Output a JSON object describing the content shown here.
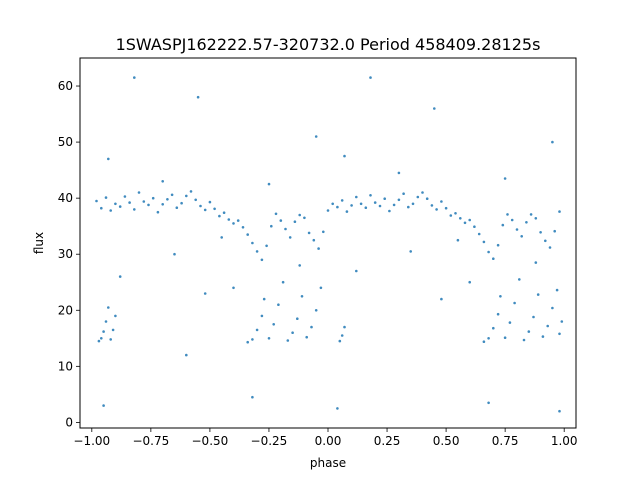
{
  "chart_data": {
    "type": "scatter",
    "title": "1SWASPJ162222.57-320732.0 Period 458409.28125s",
    "xlabel": "phase",
    "ylabel": "flux",
    "xlim": [
      -1.05,
      1.05
    ],
    "ylim": [
      -1,
      65
    ],
    "x_ticks": [
      -1.0,
      -0.75,
      -0.5,
      -0.25,
      0.0,
      0.25,
      0.5,
      0.75,
      1.0
    ],
    "x_tick_labels": [
      "−1.00",
      "−0.75",
      "−0.50",
      "−0.25",
      "0.00",
      "0.25",
      "0.50",
      "0.75",
      "1.00"
    ],
    "y_ticks": [
      0,
      10,
      20,
      30,
      40,
      50,
      60
    ],
    "y_tick_labels": [
      "0",
      "10",
      "20",
      "30",
      "40",
      "50",
      "60"
    ],
    "grid": false,
    "legend": "none",
    "point_color": "#1f77b4",
    "series": [
      {
        "points": [
          [
            -0.98,
            39.5
          ],
          [
            -0.96,
            38.2
          ],
          [
            -0.94,
            40.1
          ],
          [
            -0.92,
            37.8
          ],
          [
            -0.9,
            39.0
          ],
          [
            -0.88,
            38.5
          ],
          [
            -0.86,
            40.3
          ],
          [
            -0.84,
            39.2
          ],
          [
            -0.82,
            38.0
          ],
          [
            -0.8,
            41.0
          ],
          [
            -0.78,
            39.4
          ],
          [
            -0.76,
            38.8
          ],
          [
            -0.74,
            40.0
          ],
          [
            -0.72,
            37.5
          ],
          [
            -0.7,
            38.9
          ],
          [
            -0.68,
            39.8
          ],
          [
            -0.66,
            40.6
          ],
          [
            -0.64,
            38.3
          ],
          [
            -0.62,
            39.1
          ],
          [
            -0.6,
            40.4
          ],
          [
            -0.58,
            41.2
          ],
          [
            -0.56,
            39.7
          ],
          [
            -0.54,
            38.6
          ],
          [
            -0.52,
            37.9
          ],
          [
            -0.5,
            39.3
          ],
          [
            -0.48,
            38.1
          ],
          [
            -0.46,
            36.8
          ],
          [
            -0.44,
            37.4
          ],
          [
            -0.42,
            36.2
          ],
          [
            -0.4,
            35.5
          ],
          [
            -0.38,
            36.0
          ],
          [
            -0.36,
            34.8
          ],
          [
            -0.34,
            33.5
          ],
          [
            -0.32,
            32.0
          ],
          [
            -0.3,
            30.5
          ],
          [
            -0.28,
            29.0
          ],
          [
            -0.26,
            31.5
          ],
          [
            -0.24,
            35.0
          ],
          [
            -0.22,
            37.2
          ],
          [
            -0.2,
            36.0
          ],
          [
            -0.18,
            34.5
          ],
          [
            -0.16,
            33.0
          ],
          [
            -0.14,
            35.8
          ],
          [
            -0.12,
            37.0
          ],
          [
            -0.1,
            36.5
          ],
          [
            -0.08,
            33.8
          ],
          [
            -0.06,
            32.5
          ],
          [
            -0.04,
            31.0
          ],
          [
            -0.02,
            34.0
          ],
          [
            0.0,
            37.8
          ],
          [
            0.02,
            39.0
          ],
          [
            0.04,
            38.4
          ],
          [
            0.06,
            39.6
          ],
          [
            0.08,
            37.6
          ],
          [
            0.1,
            38.7
          ],
          [
            0.12,
            40.2
          ],
          [
            0.14,
            39.0
          ],
          [
            0.16,
            38.3
          ],
          [
            0.18,
            40.5
          ],
          [
            0.2,
            39.2
          ],
          [
            0.22,
            38.6
          ],
          [
            0.24,
            39.9
          ],
          [
            0.26,
            37.7
          ],
          [
            0.28,
            38.8
          ],
          [
            0.3,
            39.7
          ],
          [
            0.32,
            40.8
          ],
          [
            0.34,
            38.4
          ],
          [
            0.36,
            39.0
          ],
          [
            0.38,
            40.2
          ],
          [
            0.4,
            41.0
          ],
          [
            0.42,
            39.9
          ],
          [
            0.44,
            38.7
          ],
          [
            0.46,
            38.0
          ],
          [
            0.48,
            39.4
          ],
          [
            0.5,
            38.2
          ],
          [
            0.52,
            36.9
          ],
          [
            0.54,
            37.3
          ],
          [
            0.56,
            36.4
          ],
          [
            0.58,
            35.6
          ],
          [
            0.6,
            36.1
          ],
          [
            0.62,
            34.9
          ],
          [
            0.64,
            33.6
          ],
          [
            0.66,
            32.2
          ],
          [
            0.68,
            30.4
          ],
          [
            0.7,
            29.2
          ],
          [
            0.72,
            31.6
          ],
          [
            0.74,
            35.2
          ],
          [
            0.76,
            37.1
          ],
          [
            0.78,
            36.1
          ],
          [
            0.8,
            34.4
          ],
          [
            0.82,
            33.2
          ],
          [
            0.84,
            35.7
          ],
          [
            0.86,
            37.1
          ],
          [
            0.88,
            36.4
          ],
          [
            0.9,
            33.9
          ],
          [
            0.92,
            32.4
          ],
          [
            0.94,
            31.2
          ],
          [
            0.96,
            34.1
          ],
          [
            0.98,
            37.6
          ],
          [
            -0.97,
            14.5
          ],
          [
            -0.96,
            15.0
          ],
          [
            -0.95,
            16.2
          ],
          [
            -0.94,
            18.0
          ],
          [
            -0.93,
            20.5
          ],
          [
            -0.92,
            14.8
          ],
          [
            -0.91,
            16.5
          ],
          [
            -0.9,
            19.0
          ],
          [
            -0.34,
            14.3
          ],
          [
            -0.32,
            14.8
          ],
          [
            -0.3,
            16.5
          ],
          [
            -0.28,
            19.0
          ],
          [
            -0.27,
            22.0
          ],
          [
            -0.25,
            15.0
          ],
          [
            -0.23,
            17.5
          ],
          [
            -0.21,
            21.0
          ],
          [
            -0.19,
            25.0
          ],
          [
            -0.17,
            14.6
          ],
          [
            -0.15,
            16.0
          ],
          [
            -0.13,
            18.5
          ],
          [
            -0.11,
            22.5
          ],
          [
            -0.09,
            15.2
          ],
          [
            -0.07,
            17.0
          ],
          [
            -0.05,
            20.0
          ],
          [
            -0.03,
            24.0
          ],
          [
            0.05,
            14.5
          ],
          [
            0.06,
            15.5
          ],
          [
            0.07,
            17.0
          ],
          [
            0.66,
            14.4
          ],
          [
            0.68,
            15.0
          ],
          [
            0.7,
            16.8
          ],
          [
            0.72,
            19.3
          ],
          [
            0.73,
            22.5
          ],
          [
            0.75,
            15.1
          ],
          [
            0.77,
            17.8
          ],
          [
            0.79,
            21.3
          ],
          [
            0.81,
            25.5
          ],
          [
            0.83,
            14.7
          ],
          [
            0.85,
            16.2
          ],
          [
            0.87,
            18.8
          ],
          [
            0.89,
            22.8
          ],
          [
            0.91,
            15.3
          ],
          [
            0.93,
            17.2
          ],
          [
            0.95,
            20.4
          ],
          [
            0.97,
            23.6
          ],
          [
            0.98,
            15.8
          ],
          [
            0.99,
            18.0
          ],
          [
            -0.82,
            61.5
          ],
          [
            0.18,
            61.5
          ],
          [
            -0.55,
            58.0
          ],
          [
            0.45,
            56.0
          ],
          [
            -0.93,
            47.0
          ],
          [
            0.07,
            47.5
          ],
          [
            -0.7,
            43.0
          ],
          [
            0.3,
            44.5
          ],
          [
            -0.25,
            42.5
          ],
          [
            0.75,
            43.5
          ],
          [
            -0.95,
            3.0
          ],
          [
            0.04,
            2.5
          ],
          [
            -0.32,
            4.5
          ],
          [
            0.68,
            3.5
          ],
          [
            -0.52,
            23.0
          ],
          [
            0.48,
            22.0
          ],
          [
            -0.6,
            12.0
          ],
          [
            0.98,
            2.0
          ],
          [
            -0.05,
            51.0
          ],
          [
            0.95,
            50.0
          ],
          [
            -0.45,
            33.0
          ],
          [
            0.55,
            32.5
          ],
          [
            -0.65,
            30.0
          ],
          [
            0.35,
            30.5
          ],
          [
            -0.12,
            28.0
          ],
          [
            0.88,
            28.5
          ],
          [
            -0.88,
            26.0
          ],
          [
            0.12,
            27.0
          ],
          [
            -0.4,
            24.0
          ],
          [
            0.6,
            25.0
          ]
        ]
      }
    ]
  }
}
